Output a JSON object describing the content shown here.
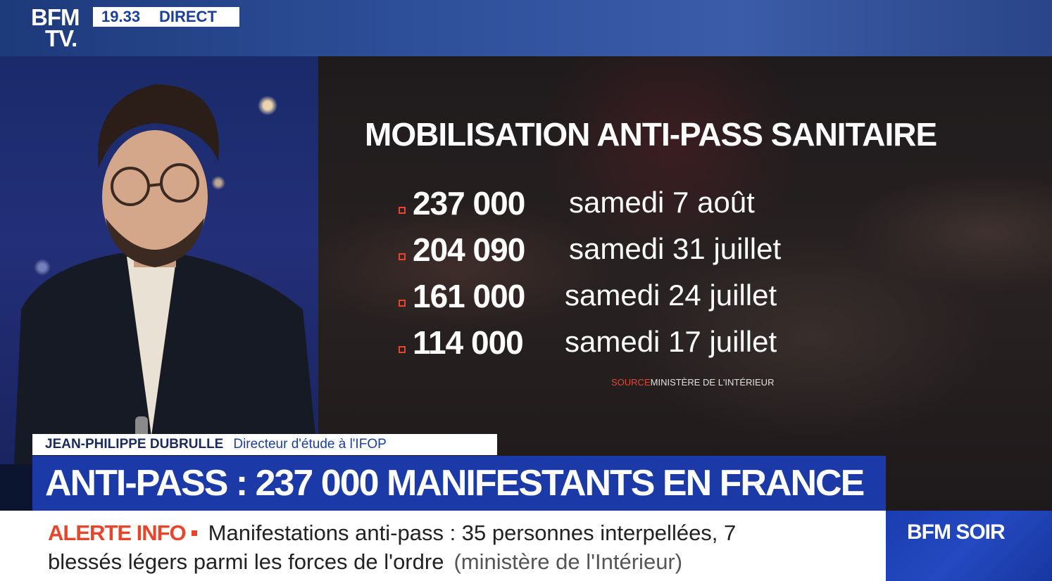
{
  "channel": {
    "logo_line1": "BFM",
    "logo_line2": "TV."
  },
  "clock": {
    "time": "19.33",
    "live_label": "DIRECT"
  },
  "infographic": {
    "title": "MOBILISATION ANTI-PASS SANITAIRE",
    "rows": [
      {
        "value": "237 000",
        "date": "samedi 7 août"
      },
      {
        "value": "204 090",
        "date": "samedi 31 juillet"
      },
      {
        "value": "161 000",
        "date": "samedi 24 juillet"
      },
      {
        "value": "114 000",
        "date": "samedi 17 juillet"
      }
    ],
    "source_label": "SOURCE",
    "source_value": "MINISTÈRE DE L'INTÉRIEUR"
  },
  "lower_third": {
    "name": "JEAN-PHILIPPE DUBRULLE",
    "role": "Directeur d'étude à l'IFOP",
    "headline": "ANTI-PASS : 237 000 MANIFESTANTS EN FRANCE"
  },
  "ticker": {
    "alert_label": "ALERTE INFO",
    "line1": "Manifestations anti-pass : 35 personnes interpellées, 7",
    "line2": "blessés légers parmi les forces de l'ordre",
    "source_tag": "(ministère de l'Intérieur)"
  },
  "show": {
    "name": "BFM SOIR"
  },
  "colors": {
    "accent_red": "#e8462c",
    "brand_blue": "#1b3aa8"
  }
}
